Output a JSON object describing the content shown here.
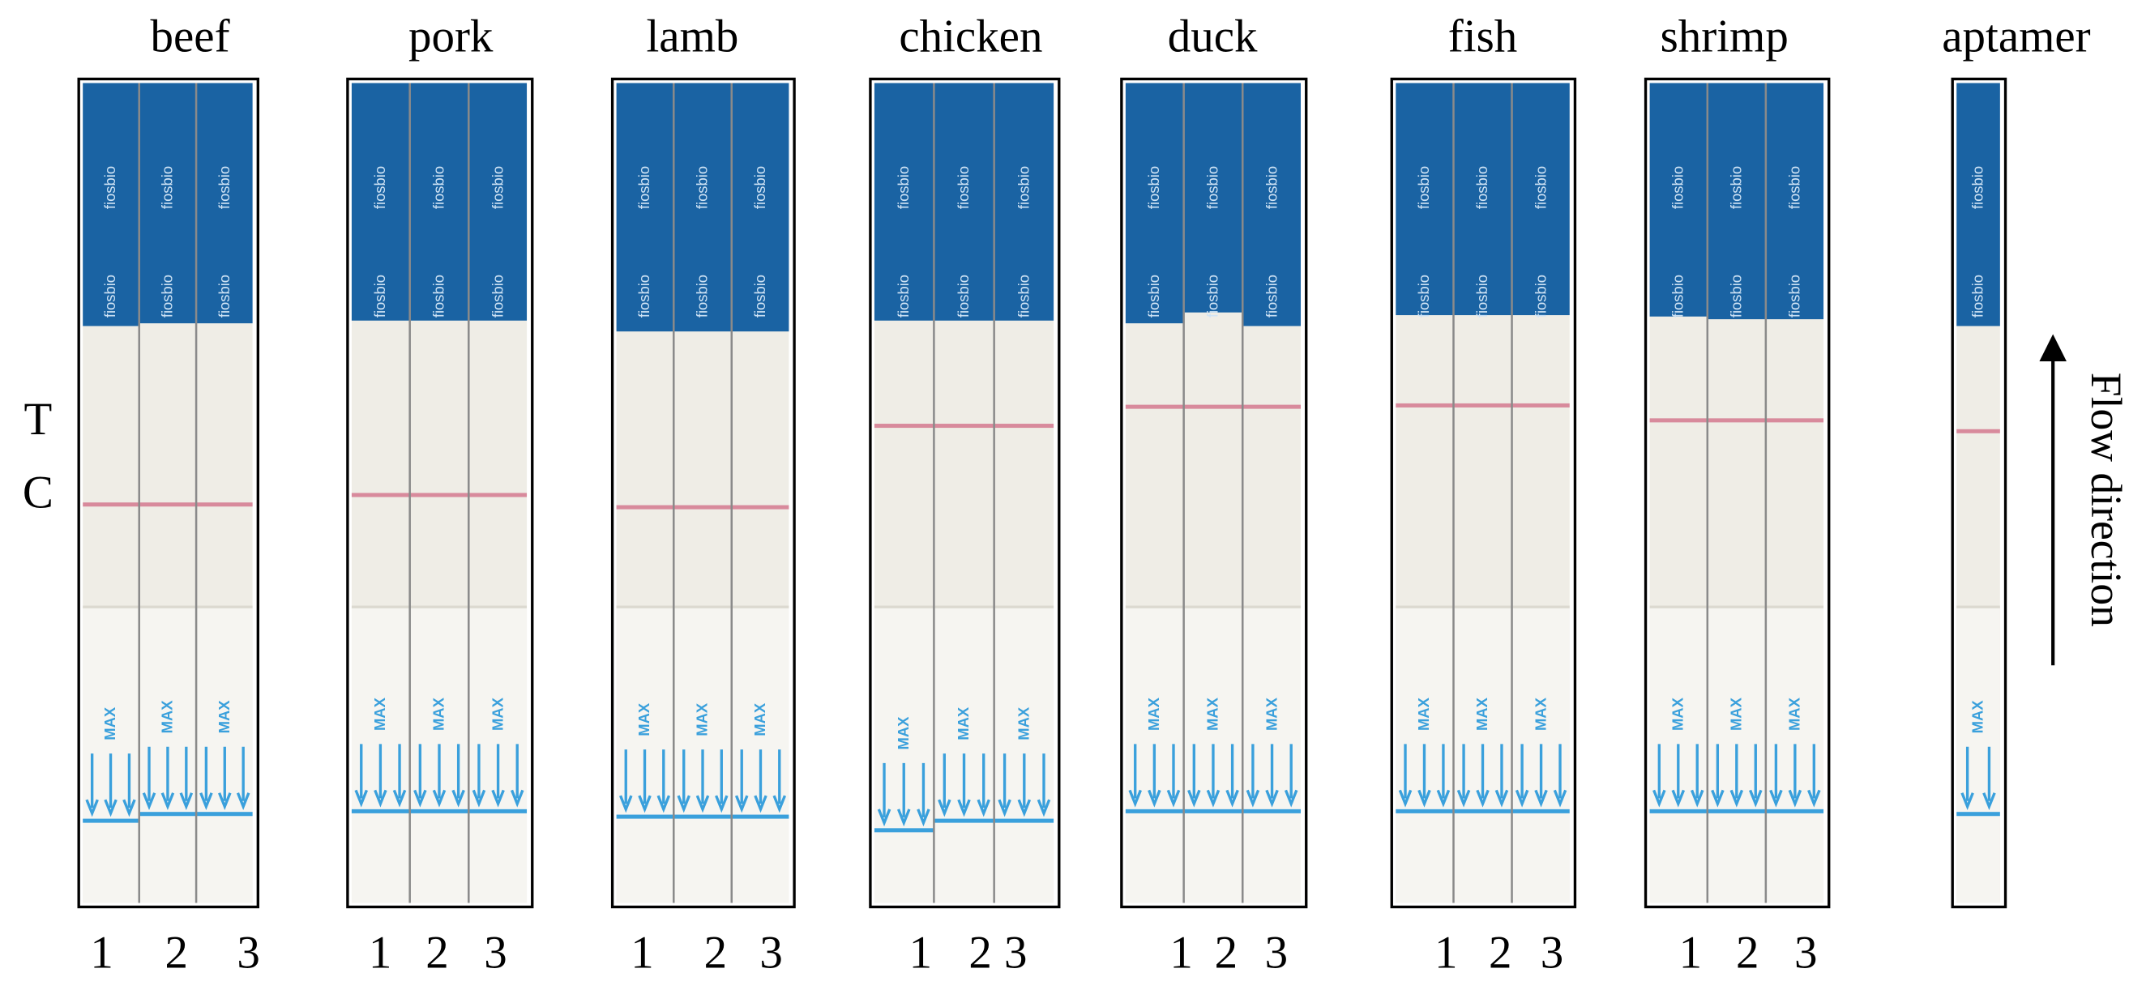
{
  "groups": [
    {
      "label": "beef",
      "strips": [
        "1",
        "2",
        "3"
      ]
    },
    {
      "label": "pork",
      "strips": [
        "1",
        "2",
        "3"
      ]
    },
    {
      "label": "lamb",
      "strips": [
        "1",
        "2",
        "3"
      ]
    },
    {
      "label": "chicken",
      "strips": [
        "1",
        "2",
        "3"
      ]
    },
    {
      "label": "duck",
      "strips": [
        "1",
        "2",
        "3"
      ]
    },
    {
      "label": "fish",
      "strips": [
        "1",
        "2",
        "3"
      ]
    },
    {
      "label": "shrimp",
      "strips": [
        "1",
        "2",
        "3"
      ]
    },
    {
      "label": "aptamer",
      "strips": []
    }
  ],
  "side_labels": [
    "T",
    "C"
  ],
  "flow_label": "Flow direction",
  "strip_brand": "fiosbio",
  "strip_max": "MAX"
}
